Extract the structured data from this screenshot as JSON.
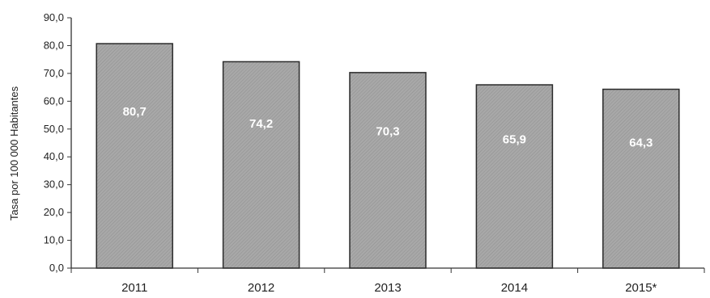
{
  "chart_data": {
    "type": "bar",
    "categories": [
      "2011",
      "2012",
      "2013",
      "2014",
      "2015*"
    ],
    "values": [
      80.7,
      74.2,
      70.3,
      65.9,
      64.3
    ],
    "data_labels": [
      "80,7",
      "74,2",
      "70,3",
      "65,9",
      "64,3"
    ],
    "title": "",
    "xlabel": "",
    "ylabel": "Tasa por 100 000 Habitantes",
    "ylim": [
      0,
      90
    ],
    "yticks": [
      0,
      10,
      20,
      30,
      40,
      50,
      60,
      70,
      80,
      90
    ],
    "ytick_labels": [
      "0,0",
      "10,0",
      "20,0",
      "30,0",
      "40,0",
      "50,0",
      "60,0",
      "70,0",
      "80,0",
      "90,0"
    ],
    "grid": false,
    "legend": "none",
    "colors": {
      "bar": "#a3a3a3",
      "bar_stroke": "#2b2b2b",
      "axis": "#333333",
      "label": "#ffffff"
    }
  }
}
